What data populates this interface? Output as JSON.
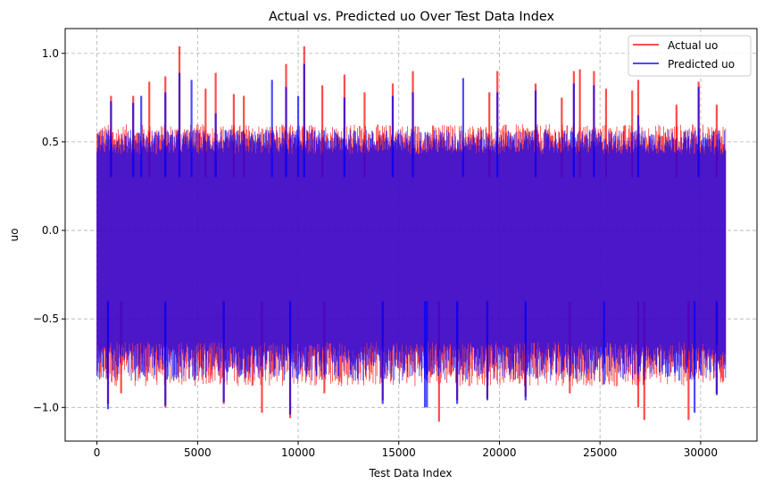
{
  "chart_data": {
    "type": "line",
    "title": "Actual vs. Predicted uo Over Test Data Index",
    "xlabel": "Test Data Index",
    "ylabel": "uo",
    "xlim": [
      -1580,
      32800
    ],
    "ylim": [
      -1.19,
      1.14
    ],
    "x_range": [
      0,
      31250
    ],
    "xticks": [
      0,
      5000,
      10000,
      15000,
      20000,
      25000,
      30000
    ],
    "xtick_labels": [
      "0",
      "5000",
      "10000",
      "15000",
      "20000",
      "25000",
      "30000"
    ],
    "yticks": [
      -1.0,
      -0.5,
      0.0,
      0.5,
      1.0
    ],
    "ytick_labels": [
      "−1.0",
      "−0.5",
      "0.0",
      "0.5",
      "1.0"
    ],
    "grid": true,
    "grid_style": "dashed",
    "legend_position": "top-right",
    "series": [
      {
        "name": "Actual uo",
        "color": "#ff0000",
        "alpha": 0.7,
        "typical_upper": [
          0.45,
          0.6
        ],
        "typical_lower": [
          -0.88,
          -0.65
        ],
        "upper_peaks": [
          [
            700,
            0.76
          ],
          [
            1800,
            0.76
          ],
          [
            2600,
            0.84
          ],
          [
            3400,
            0.87
          ],
          [
            4100,
            1.04
          ],
          [
            5400,
            0.8
          ],
          [
            5900,
            0.89
          ],
          [
            6800,
            0.77
          ],
          [
            7300,
            0.76
          ],
          [
            9400,
            0.94
          ],
          [
            10300,
            1.04
          ],
          [
            11200,
            0.82
          ],
          [
            12300,
            0.88
          ],
          [
            13300,
            0.78
          ],
          [
            14700,
            0.83
          ],
          [
            15700,
            0.9
          ],
          [
            19500,
            0.78
          ],
          [
            19900,
            0.9
          ],
          [
            21800,
            0.83
          ],
          [
            23100,
            0.75
          ],
          [
            23700,
            0.9
          ],
          [
            24000,
            0.91
          ],
          [
            24700,
            0.9
          ],
          [
            25300,
            0.8
          ],
          [
            26600,
            0.79
          ],
          [
            26900,
            0.85
          ],
          [
            28800,
            0.71
          ],
          [
            29900,
            0.84
          ],
          [
            30800,
            0.71
          ]
        ],
        "lower_peaks": [
          [
            550,
            -0.98
          ],
          [
            1200,
            -0.92
          ],
          [
            3400,
            -1.0
          ],
          [
            6300,
            -0.98
          ],
          [
            8200,
            -1.03
          ],
          [
            9600,
            -1.06
          ],
          [
            11300,
            -0.92
          ],
          [
            14200,
            -0.96
          ],
          [
            17000,
            -1.08
          ],
          [
            17900,
            -0.96
          ],
          [
            19400,
            -0.95
          ],
          [
            21300,
            -0.94
          ],
          [
            23500,
            -0.92
          ],
          [
            26900,
            -1.0
          ],
          [
            27200,
            -1.07
          ],
          [
            29400,
            -1.07
          ],
          [
            30800,
            -0.92
          ]
        ]
      },
      {
        "name": "Predicted uo",
        "color": "#0000ff",
        "alpha": 0.7,
        "typical_upper": [
          0.43,
          0.57
        ],
        "typical_lower": [
          -0.85,
          -0.63
        ],
        "upper_peaks": [
          [
            700,
            0.73
          ],
          [
            1800,
            0.72
          ],
          [
            2200,
            0.76
          ],
          [
            3400,
            0.78
          ],
          [
            4100,
            0.89
          ],
          [
            4700,
            0.85
          ],
          [
            5900,
            0.66
          ],
          [
            8700,
            0.85
          ],
          [
            9400,
            0.81
          ],
          [
            10000,
            0.76
          ],
          [
            10300,
            0.94
          ],
          [
            12300,
            0.75
          ],
          [
            14700,
            0.76
          ],
          [
            15700,
            0.78
          ],
          [
            18200,
            0.86
          ],
          [
            19900,
            0.78
          ],
          [
            21800,
            0.79
          ],
          [
            23700,
            0.83
          ],
          [
            24700,
            0.82
          ],
          [
            26900,
            0.65
          ],
          [
            29900,
            0.81
          ]
        ],
        "lower_peaks": [
          [
            550,
            -1.01
          ],
          [
            3400,
            -0.99
          ],
          [
            6300,
            -0.97
          ],
          [
            9600,
            -1.04
          ],
          [
            14200,
            -0.98
          ],
          [
            16300,
            -1.0
          ],
          [
            16400,
            -1.0
          ],
          [
            17900,
            -0.98
          ],
          [
            19400,
            -0.96
          ],
          [
            21300,
            -0.96
          ],
          [
            25200,
            -0.87
          ],
          [
            29700,
            -1.03
          ],
          [
            30800,
            -0.93
          ]
        ]
      }
    ]
  }
}
